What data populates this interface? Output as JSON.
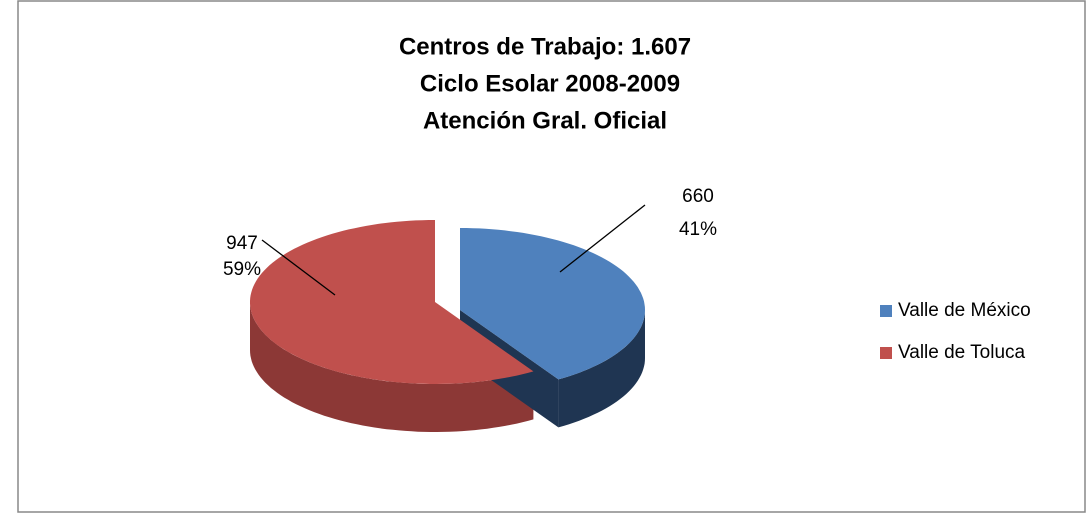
{
  "chart_data": {
    "type": "pie",
    "title": [
      "Centros de Trabajo: 1.607",
      "Ciclo Esolar 2008-2009",
      "Atención Gral. Oficial"
    ],
    "categories": [
      "Valle de México",
      "Valle de Toluca"
    ],
    "values": [
      660,
      947
    ],
    "percent_values": [
      41,
      59
    ],
    "percent_labels": [
      "41%",
      "59%"
    ],
    "colors": [
      "#4f81bd",
      "#c0504d"
    ],
    "legend": "right"
  }
}
